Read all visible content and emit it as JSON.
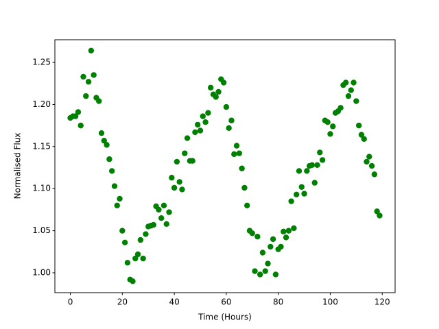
{
  "chart_data": {
    "type": "scatter",
    "xlabel": "Time (Hours)",
    "ylabel": "Normalised Flux",
    "color": "#008000",
    "x": [
      0,
      1,
      2,
      3,
      4,
      5,
      6,
      7,
      8,
      9,
      10,
      11,
      12,
      13,
      14,
      15,
      16,
      17,
      18,
      19,
      20,
      21,
      22,
      23,
      24,
      25,
      26,
      27,
      28,
      29,
      30,
      31,
      32,
      33,
      34,
      35,
      36,
      37,
      38,
      39,
      40,
      41,
      42,
      43,
      44,
      45,
      46,
      47,
      48,
      49,
      50,
      51,
      52,
      53,
      54,
      55,
      56,
      57,
      58,
      59,
      60,
      61,
      62,
      63,
      64,
      65,
      66,
      67,
      68,
      69,
      70,
      71,
      72,
      73,
      74,
      75,
      76,
      77,
      78,
      79,
      80,
      81,
      82,
      83,
      84,
      85,
      86,
      87,
      88,
      89,
      90,
      91,
      92,
      93,
      94,
      95,
      96,
      97,
      98,
      99,
      100,
      101,
      102,
      103,
      104,
      105,
      106,
      107,
      108,
      109,
      110,
      111,
      112,
      113,
      114,
      115,
      116,
      117,
      118,
      119
    ],
    "values": [
      1.184,
      1.186,
      1.186,
      1.191,
      1.175,
      1.233,
      1.21,
      1.227,
      1.264,
      1.235,
      1.208,
      1.204,
      1.166,
      1.157,
      1.152,
      1.135,
      1.121,
      1.103,
      1.08,
      1.088,
      1.05,
      1.036,
      1.012,
      0.992,
      0.99,
      1.017,
      1.022,
      1.039,
      1.017,
      1.046,
      1.055,
      1.056,
      1.057,
      1.079,
      1.075,
      1.065,
      1.08,
      1.058,
      1.072,
      1.113,
      1.101,
      1.132,
      1.108,
      1.099,
      1.142,
      1.16,
      1.133,
      1.133,
      1.167,
      1.176,
      1.169,
      1.186,
      1.179,
      1.19,
      1.22,
      1.212,
      1.209,
      1.215,
      1.23,
      1.226,
      1.197,
      1.172,
      1.181,
      1.141,
      1.151,
      1.142,
      1.124,
      1.101,
      1.08,
      1.05,
      1.047,
      1.002,
      1.043,
      0.998,
      1.024,
      1.002,
      1.011,
      1.031,
      1.04,
      0.998,
      1.028,
      1.031,
      1.049,
      1.042,
      1.05,
      1.085,
      1.053,
      1.093,
      1.121,
      1.102,
      1.094,
      1.121,
      1.127,
      1.128,
      1.107,
      1.128,
      1.143,
      1.134,
      1.181,
      1.179,
      1.165,
      1.174,
      1.19,
      1.192,
      1.196,
      1.223,
      1.226,
      1.21,
      1.217,
      1.226,
      1.204,
      1.175,
      1.164,
      1.159,
      1.132,
      1.138,
      1.127,
      1.117,
      1.073,
      1.068
    ],
    "xlim": [
      -5.95,
      124.95
    ],
    "ylim": [
      0.9764,
      1.2769
    ],
    "xticks": [
      0,
      20,
      40,
      60,
      80,
      100,
      120
    ],
    "yticks": [
      {
        "value": 1.0,
        "label": "1.00"
      },
      1.05,
      {
        "value": 1.1,
        "label": "1.10"
      },
      1.15,
      {
        "value": 1.2,
        "label": "1.20"
      },
      1.25
    ]
  }
}
